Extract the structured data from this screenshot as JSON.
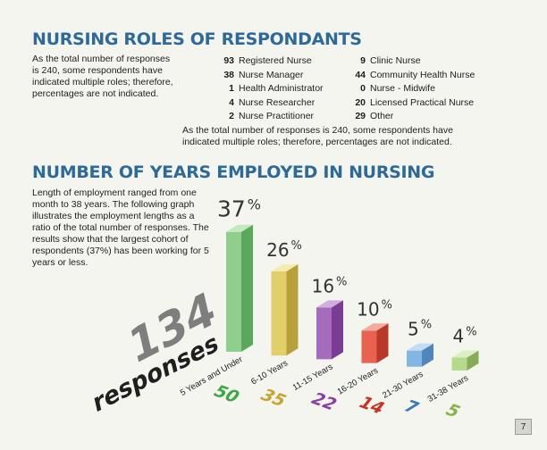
{
  "roles_section": {
    "title": "NURSING ROLES OF RESPONDANTS",
    "note_left": "As the total number of responses is 240, some respondents have indicated multiple roles; therefore, percentages are not indicated.",
    "roles_left": [
      {
        "count": "93",
        "role": "Registered Nurse"
      },
      {
        "count": "38",
        "role": "Nurse Manager"
      },
      {
        "count": "1",
        "role": "Health Administrator"
      },
      {
        "count": "4",
        "role": "Nurse Researcher"
      },
      {
        "count": "2",
        "role": "Nurse Practitioner"
      }
    ],
    "roles_right": [
      {
        "count": "9",
        "role": "Clinic Nurse"
      },
      {
        "count": "44",
        "role": "Community Health Nurse"
      },
      {
        "count": "0",
        "role": "Nurse - Midwife"
      },
      {
        "count": "20",
        "role": "Licensed Practical Nurse"
      },
      {
        "count": "29",
        "role": "Other"
      }
    ],
    "note_bottom": "As the total number of responses is 240, some respondents have indicated multiple roles; therefore, percentages are not indicated."
  },
  "years_section": {
    "title": "NUMBER OF YEARS EMPLOYED IN NURSING",
    "description": "Length of employment ranged from one month to 38 years. The following graph illustrates the employment lengths as a ratio of the total number of responses. The results show that the largest cohort of respondents (37%) has been working for 5 years or less.",
    "total_number": "134",
    "total_label": "responses"
  },
  "chart_data": {
    "type": "bar",
    "categories": [
      "5 Years and Under",
      "6-10 Years",
      "11-15 Years",
      "16-20 Years",
      "21-30 Years",
      "31-38 Years"
    ],
    "percent_values": [
      37,
      26,
      16,
      10,
      5,
      4
    ],
    "counts": [
      50,
      35,
      22,
      14,
      7,
      5
    ],
    "value_suffix": "%",
    "colors": {
      "front": [
        "#8fce8c",
        "#e3cf6a",
        "#a56bbd",
        "#e8624f",
        "#84b6e3",
        "#b7d98c"
      ],
      "side": [
        "#5aa85c",
        "#b8a13a",
        "#7a3d93",
        "#b8382a",
        "#4f86bb",
        "#88ab58"
      ],
      "top": [
        "#c2e8be",
        "#f5ebb0",
        "#d2acdf",
        "#f4aa9c",
        "#c4dcf4",
        "#deeec2"
      ],
      "count_text": [
        "#3ea846",
        "#c7a62a",
        "#8c3fa6",
        "#cc3223",
        "#3a78bd",
        "#84b545"
      ],
      "total_number": "#7e7e7e",
      "total_label": "#1f1f1f"
    }
  },
  "page_number": "7"
}
